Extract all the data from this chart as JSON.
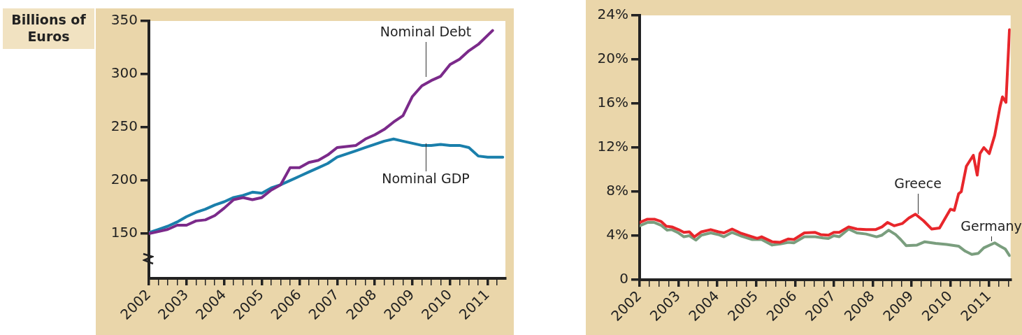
{
  "chart_data": [
    {
      "type": "line",
      "ylabel": "Billions of Euros",
      "xlim": [
        2002,
        2011.47
      ],
      "ylim": [
        108,
        350
      ],
      "yticks": [
        150,
        200,
        250,
        300,
        350
      ],
      "xticks": [
        2002,
        {
          "value": 2002.25,
          "label": null
        },
        {
          "value": 2002.5,
          "label": null
        },
        {
          "value": 2002.75,
          "label": null
        },
        2003,
        {
          "value": 2003.25,
          "label": null
        },
        {
          "value": 2003.5,
          "label": null
        },
        {
          "value": 2003.75,
          "label": null
        },
        2004,
        {
          "value": 2004.25,
          "label": null
        },
        {
          "value": 2004.5,
          "label": null
        },
        {
          "value": 2004.75,
          "label": null
        },
        2005,
        {
          "value": 2005.25,
          "label": null
        },
        {
          "value": 2005.5,
          "label": null
        },
        {
          "value": 2005.75,
          "label": null
        },
        2006,
        {
          "value": 2006.25,
          "label": null
        },
        {
          "value": 2006.5,
          "label": null
        },
        {
          "value": 2006.75,
          "label": null
        },
        2007,
        {
          "value": 2007.25,
          "label": null
        },
        {
          "value": 2007.5,
          "label": null
        },
        {
          "value": 2007.75,
          "label": null
        },
        2008,
        {
          "value": 2008.25,
          "label": null
        },
        {
          "value": 2008.5,
          "label": null
        },
        {
          "value": 2008.75,
          "label": null
        },
        2009,
        {
          "value": 2009.25,
          "label": null
        },
        {
          "value": 2009.5,
          "label": null
        },
        {
          "value": 2009.75,
          "label": null
        },
        2010,
        {
          "value": 2010.25,
          "label": null
        },
        {
          "value": 2010.5,
          "label": null
        },
        {
          "value": 2010.75,
          "label": null
        },
        2011,
        {
          "value": 2011.25,
          "label": null
        }
      ],
      "grid": false,
      "legend": false,
      "marker": "none",
      "line_style": "solid",
      "series": [
        {
          "name": "Nominal Debt",
          "color": "#7b2a8a",
          "x": [
            2002,
            2002.25,
            2002.5,
            2002.75,
            2003,
            2003.25,
            2003.5,
            2003.75,
            2004,
            2004.25,
            2004.5,
            2004.75,
            2005,
            2005.25,
            2005.5,
            2005.75,
            2006,
            2006.25,
            2006.5,
            2006.75,
            2007,
            2007.25,
            2007.5,
            2007.75,
            2008,
            2008.25,
            2008.5,
            2008.75,
            2009,
            2009.25,
            2009.5,
            2009.75,
            2010,
            2010.25,
            2010.5,
            2010.75,
            2011.13
          ],
          "values": [
            150,
            152,
            154,
            158,
            158,
            162,
            163,
            167,
            174,
            182,
            184,
            182,
            184,
            191,
            196,
            212,
            212,
            217,
            219,
            224,
            231,
            232,
            233,
            239,
            243,
            248,
            255,
            261,
            279,
            289,
            294,
            298,
            309,
            314,
            322,
            328,
            341
          ]
        },
        {
          "name": "Nominal GDP",
          "color": "#1a7fab",
          "x": [
            2002,
            2002.25,
            2002.5,
            2002.75,
            2003,
            2003.25,
            2003.5,
            2003.75,
            2004,
            2004.25,
            2004.5,
            2004.75,
            2005,
            2005.25,
            2005.5,
            2005.75,
            2006,
            2006.25,
            2006.5,
            2006.75,
            2007,
            2007.25,
            2007.5,
            2007.75,
            2008,
            2008.25,
            2008.5,
            2008.75,
            2009,
            2009.25,
            2009.5,
            2009.75,
            2010,
            2010.25,
            2010.5,
            2010.75,
            2011,
            2011.4
          ],
          "values": [
            151,
            154,
            157,
            161,
            166,
            170,
            173,
            177,
            180,
            184,
            186,
            189,
            188,
            193,
            196,
            200,
            204,
            208,
            212,
            216,
            222,
            225,
            228,
            231,
            234,
            237,
            239,
            237,
            235,
            233,
            233,
            234,
            233,
            233,
            231,
            223,
            222,
            222
          ]
        }
      ]
    },
    {
      "type": "line",
      "xlim": [
        2002,
        2011.55
      ],
      "ylim": [
        0,
        24
      ],
      "yticks": [
        0,
        {
          "value": 4,
          "label": "4%"
        },
        {
          "value": 8,
          "label": "8%"
        },
        {
          "value": 12,
          "label": "12%"
        },
        {
          "value": 16,
          "label": "16%"
        },
        {
          "value": 20,
          "label": "20%"
        },
        {
          "value": 24,
          "label": "24%"
        }
      ],
      "xticks": [
        2002,
        {
          "value": 2002.25,
          "label": null
        },
        {
          "value": 2002.5,
          "label": null
        },
        {
          "value": 2002.75,
          "label": null
        },
        2003,
        {
          "value": 2003.25,
          "label": null
        },
        {
          "value": 2003.5,
          "label": null
        },
        {
          "value": 2003.75,
          "label": null
        },
        2004,
        {
          "value": 2004.25,
          "label": null
        },
        {
          "value": 2004.5,
          "label": null
        },
        {
          "value": 2004.75,
          "label": null
        },
        2005,
        {
          "value": 2005.25,
          "label": null
        },
        {
          "value": 2005.5,
          "label": null
        },
        {
          "value": 2005.75,
          "label": null
        },
        2006,
        {
          "value": 2006.25,
          "label": null
        },
        {
          "value": 2006.5,
          "label": null
        },
        {
          "value": 2006.75,
          "label": null
        },
        2007,
        {
          "value": 2007.25,
          "label": null
        },
        {
          "value": 2007.5,
          "label": null
        },
        {
          "value": 2007.75,
          "label": null
        },
        2008,
        {
          "value": 2008.25,
          "label": null
        },
        {
          "value": 2008.5,
          "label": null
        },
        {
          "value": 2008.75,
          "label": null
        },
        2009,
        {
          "value": 2009.25,
          "label": null
        },
        {
          "value": 2009.5,
          "label": null
        },
        {
          "value": 2009.75,
          "label": null
        },
        2010,
        {
          "value": 2010.25,
          "label": null
        },
        {
          "value": 2010.5,
          "label": null
        },
        {
          "value": 2010.75,
          "label": null
        },
        2011,
        {
          "value": 2011.25,
          "label": null
        },
        {
          "value": 2011.5,
          "label": null
        }
      ],
      "grid": false,
      "legend": false,
      "marker": "none",
      "line_style": "solid",
      "series": [
        {
          "name": "Greece",
          "color": "#e8262b",
          "x": [
            2002,
            2002.2,
            2002.38,
            2002.55,
            2002.69,
            2002.83,
            2003,
            2003.14,
            2003.28,
            2003.41,
            2003.59,
            2003.83,
            2004.03,
            2004.17,
            2004.38,
            2004.59,
            2004.9,
            2005.03,
            2005.14,
            2005.41,
            2005.62,
            2005.83,
            2005.97,
            2006.24,
            2006.52,
            2006.66,
            2006.86,
            2007,
            2007.14,
            2007.38,
            2007.59,
            2007.83,
            2008.07,
            2008.24,
            2008.38,
            2008.55,
            2008.76,
            2008.93,
            2009.1,
            2009.31,
            2009.52,
            2009.72,
            2009.9,
            2010,
            2010.1,
            2010.21,
            2010.28,
            2010.41,
            2010.59,
            2010.69,
            2010.76,
            2010.86,
            2011,
            2011.14,
            2011.28,
            2011.34,
            2011.43,
            2011.52
          ],
          "values": [
            5.2,
            5.5,
            5.5,
            5.3,
            4.85,
            4.8,
            4.55,
            4.3,
            4.35,
            3.9,
            4.35,
            4.55,
            4.35,
            4.25,
            4.6,
            4.25,
            3.9,
            3.75,
            3.9,
            3.45,
            3.4,
            3.7,
            3.65,
            4.25,
            4.3,
            4.1,
            4.05,
            4.3,
            4.3,
            4.8,
            4.6,
            4.55,
            4.55,
            4.8,
            5.2,
            4.9,
            5.1,
            5.6,
            5.95,
            5.35,
            4.6,
            4.7,
            5.8,
            6.4,
            6.3,
            7.8,
            8,
            10.3,
            11.3,
            9.5,
            11.45,
            12,
            11.45,
            13.1,
            15.75,
            16.6,
            16.1,
            22.7
          ]
        },
        {
          "name": "Germany",
          "color": "#7a9e7e",
          "x": [
            2002,
            2002.2,
            2002.38,
            2002.55,
            2002.71,
            2002.83,
            2003,
            2003.14,
            2003.28,
            2003.45,
            2003.59,
            2003.83,
            2004.03,
            2004.17,
            2004.38,
            2004.59,
            2004.9,
            2005.14,
            2005.41,
            2005.62,
            2005.83,
            2005.97,
            2006.24,
            2006.52,
            2006.72,
            2006.86,
            2007,
            2007.14,
            2007.38,
            2007.59,
            2007.83,
            2008.1,
            2008.24,
            2008.41,
            2008.59,
            2008.72,
            2008.86,
            2009.14,
            2009.34,
            2009.62,
            2009.9,
            2010.21,
            2010.38,
            2010.55,
            2010.72,
            2010.86,
            2011.14,
            2011.28,
            2011.41,
            2011.52
          ],
          "values": [
            4.9,
            5.2,
            5.2,
            4.95,
            4.5,
            4.55,
            4.25,
            3.9,
            4,
            3.6,
            4.05,
            4.25,
            4.1,
            3.9,
            4.3,
            4,
            3.65,
            3.65,
            3.15,
            3.25,
            3.4,
            3.35,
            3.9,
            3.9,
            3.8,
            3.75,
            4,
            3.9,
            4.6,
            4.25,
            4.15,
            3.9,
            4.05,
            4.5,
            4.1,
            3.65,
            3.1,
            3.15,
            3.45,
            3.3,
            3.2,
            3.05,
            2.6,
            2.3,
            2.4,
            2.9,
            3.35,
            3.05,
            2.8,
            2.2
          ]
        }
      ]
    }
  ]
}
